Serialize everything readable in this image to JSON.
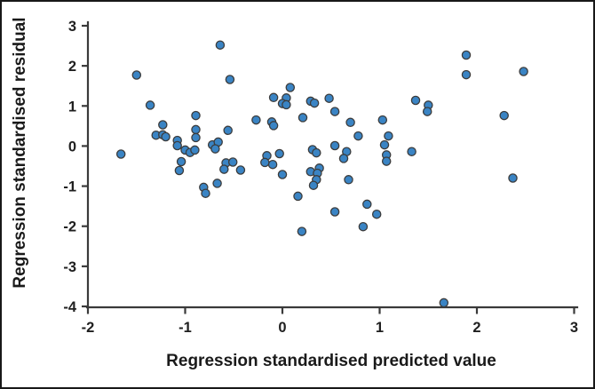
{
  "chart_data": {
    "type": "scatter",
    "title": "",
    "xlabel": "Regression standardised predicted value",
    "ylabel": "Regression standardised residual",
    "xlim": [
      -2,
      3
    ],
    "ylim": [
      -4,
      3
    ],
    "x_ticks": [
      -2,
      -1,
      0,
      1,
      2,
      3
    ],
    "y_ticks": [
      3,
      2,
      1,
      0,
      -1,
      -2,
      -3,
      -4
    ],
    "grid": false,
    "legend": "none",
    "marker": {
      "shape": "circle",
      "fill": "#3a84c4",
      "stroke": "#3c3c3c",
      "radius": 4.6
    },
    "points": [
      [
        -1.5,
        1.77
      ],
      [
        -1.36,
        1.02
      ],
      [
        -0.89,
        0.76
      ],
      [
        -1.23,
        0.53
      ],
      [
        -0.64,
        2.52
      ],
      [
        -0.54,
        1.66
      ],
      [
        0.08,
        1.46
      ],
      [
        -0.09,
        1.21
      ],
      [
        0.04,
        1.2
      ],
      [
        0.0,
        1.06
      ],
      [
        0.04,
        1.03
      ],
      [
        0.29,
        1.12
      ],
      [
        0.33,
        1.07
      ],
      [
        0.48,
        1.19
      ],
      [
        0.54,
        0.86
      ],
      [
        -0.27,
        0.65
      ],
      [
        -0.11,
        0.6
      ],
      [
        -0.09,
        0.51
      ],
      [
        0.21,
        0.71
      ],
      [
        -0.56,
        0.39
      ],
      [
        1.37,
        1.14
      ],
      [
        1.5,
        1.02
      ],
      [
        1.49,
        0.86
      ],
      [
        0.7,
        0.59
      ],
      [
        1.03,
        0.65
      ],
      [
        1.89,
        2.27
      ],
      [
        1.89,
        1.78
      ],
      [
        2.48,
        1.86
      ],
      [
        2.28,
        0.76
      ],
      [
        -1.66,
        -0.2
      ],
      [
        -1.3,
        0.27
      ],
      [
        -1.23,
        0.28
      ],
      [
        -1.2,
        0.23
      ],
      [
        -0.89,
        0.41
      ],
      [
        -0.89,
        0.21
      ],
      [
        -1.08,
        0.14
      ],
      [
        -1.08,
        0.01
      ],
      [
        -1.0,
        -0.1
      ],
      [
        -0.95,
        -0.16
      ],
      [
        -0.9,
        -0.1
      ],
      [
        -1.04,
        -0.39
      ],
      [
        -1.06,
        -0.61
      ],
      [
        -0.81,
        -1.03
      ],
      [
        -0.79,
        -1.18
      ],
      [
        -0.72,
        0.03
      ],
      [
        -0.66,
        0.1
      ],
      [
        -0.69,
        -0.07
      ],
      [
        -0.16,
        -0.24
      ],
      [
        -0.18,
        -0.41
      ],
      [
        -0.1,
        -0.46
      ],
      [
        -0.03,
        -0.19
      ],
      [
        0.0,
        -0.71
      ],
      [
        -0.58,
        -0.42
      ],
      [
        -0.51,
        -0.4
      ],
      [
        -0.6,
        -0.58
      ],
      [
        -0.43,
        -0.6
      ],
      [
        -0.67,
        -0.93
      ],
      [
        0.31,
        -0.09
      ],
      [
        0.35,
        -0.17
      ],
      [
        0.38,
        -0.55
      ],
      [
        0.29,
        -0.64
      ],
      [
        0.36,
        -0.68
      ],
      [
        0.35,
        -0.84
      ],
      [
        0.32,
        -0.98
      ],
      [
        0.16,
        -1.25
      ],
      [
        0.2,
        -2.13
      ],
      [
        0.78,
        0.25
      ],
      [
        0.54,
        0.01
      ],
      [
        0.66,
        -0.14
      ],
      [
        0.63,
        -0.31
      ],
      [
        1.09,
        0.25
      ],
      [
        1.05,
        0.03
      ],
      [
        1.07,
        -0.22
      ],
      [
        1.07,
        -0.38
      ],
      [
        1.33,
        -0.14
      ],
      [
        0.68,
        -0.84
      ],
      [
        0.54,
        -1.64
      ],
      [
        0.87,
        -1.45
      ],
      [
        0.97,
        -1.7
      ],
      [
        0.83,
        -2.01
      ],
      [
        2.37,
        -0.8
      ],
      [
        1.66,
        -3.91
      ]
    ]
  },
  "colors": {
    "background": "#ffffff",
    "border": "#181818",
    "axis": "#3a3a3a",
    "text": "#1f1f1f",
    "marker_fill": "#3a84c4",
    "marker_stroke": "#3c3c3c"
  }
}
